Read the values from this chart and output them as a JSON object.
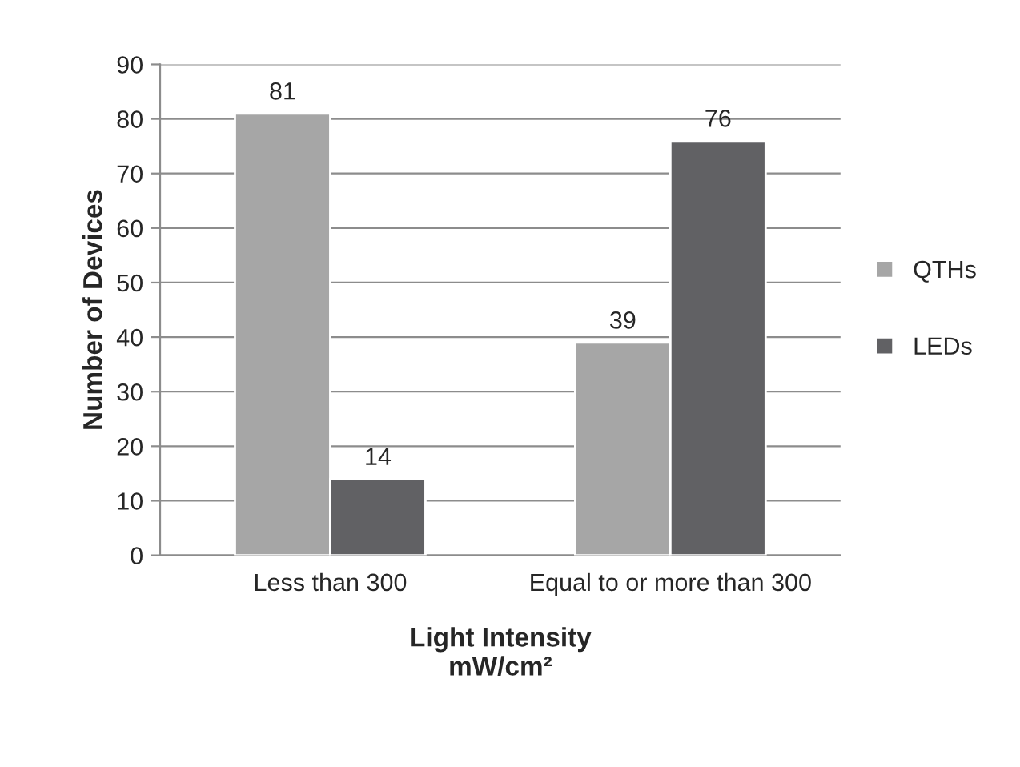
{
  "chart_data": {
    "type": "bar",
    "categories": [
      "Less than 300",
      "Equal to or more than 300"
    ],
    "series": [
      {
        "name": "QTHs",
        "color": "#a6a6a6",
        "values": [
          81,
          39
        ]
      },
      {
        "name": "LEDs",
        "color": "#616164",
        "values": [
          14,
          76
        ]
      }
    ],
    "xlabel": "Light Intensity\nmW/cm²",
    "ylabel": "Number of Devices",
    "ylim": [
      0,
      90
    ],
    "yticks": [
      0,
      10,
      20,
      30,
      40,
      50,
      60,
      70,
      80,
      90
    ],
    "grid": "y",
    "legend": "right",
    "data_labels": true
  }
}
